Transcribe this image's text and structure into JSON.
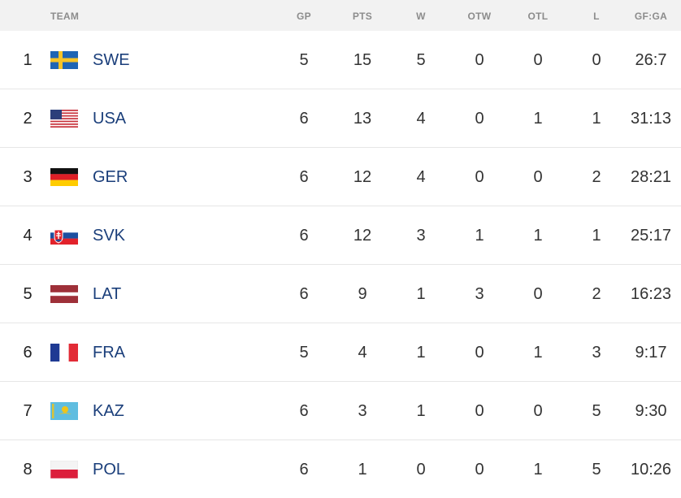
{
  "header": {
    "team": "TEAM",
    "gp": "GP",
    "pts": "PTS",
    "w": "W",
    "otw": "OTW",
    "otl": "OTL",
    "l": "L",
    "gfga": "GF:GA"
  },
  "rows": [
    {
      "rank": "1",
      "team": "SWE",
      "flag": "sweden-flag-icon",
      "gp": "5",
      "pts": "15",
      "w": "5",
      "otw": "0",
      "otl": "0",
      "l": "0",
      "gfga": "26:7"
    },
    {
      "rank": "2",
      "team": "USA",
      "flag": "usa-flag-icon",
      "gp": "6",
      "pts": "13",
      "w": "4",
      "otw": "0",
      "otl": "1",
      "l": "1",
      "gfga": "31:13"
    },
    {
      "rank": "3",
      "team": "GER",
      "flag": "germany-flag-icon",
      "gp": "6",
      "pts": "12",
      "w": "4",
      "otw": "0",
      "otl": "0",
      "l": "2",
      "gfga": "28:21"
    },
    {
      "rank": "4",
      "team": "SVK",
      "flag": "slovakia-flag-icon",
      "gp": "6",
      "pts": "12",
      "w": "3",
      "otw": "1",
      "otl": "1",
      "l": "1",
      "gfga": "25:17"
    },
    {
      "rank": "5",
      "team": "LAT",
      "flag": "latvia-flag-icon",
      "gp": "6",
      "pts": "9",
      "w": "1",
      "otw": "3",
      "otl": "0",
      "l": "2",
      "gfga": "16:23"
    },
    {
      "rank": "6",
      "team": "FRA",
      "flag": "france-flag-icon",
      "gp": "5",
      "pts": "4",
      "w": "1",
      "otw": "0",
      "otl": "1",
      "l": "3",
      "gfga": "9:17"
    },
    {
      "rank": "7",
      "team": "KAZ",
      "flag": "kazakhstan-flag-icon",
      "gp": "6",
      "pts": "3",
      "w": "1",
      "otw": "0",
      "otl": "0",
      "l": "5",
      "gfga": "9:30"
    },
    {
      "rank": "8",
      "team": "POL",
      "flag": "poland-flag-icon",
      "gp": "6",
      "pts": "1",
      "w": "0",
      "otw": "0",
      "otl": "1",
      "l": "5",
      "gfga": "10:26"
    }
  ],
  "colors": {
    "team_text": "#1a3e7a",
    "header_bg": "#f2f2f2",
    "header_text": "#8c8c8c"
  }
}
